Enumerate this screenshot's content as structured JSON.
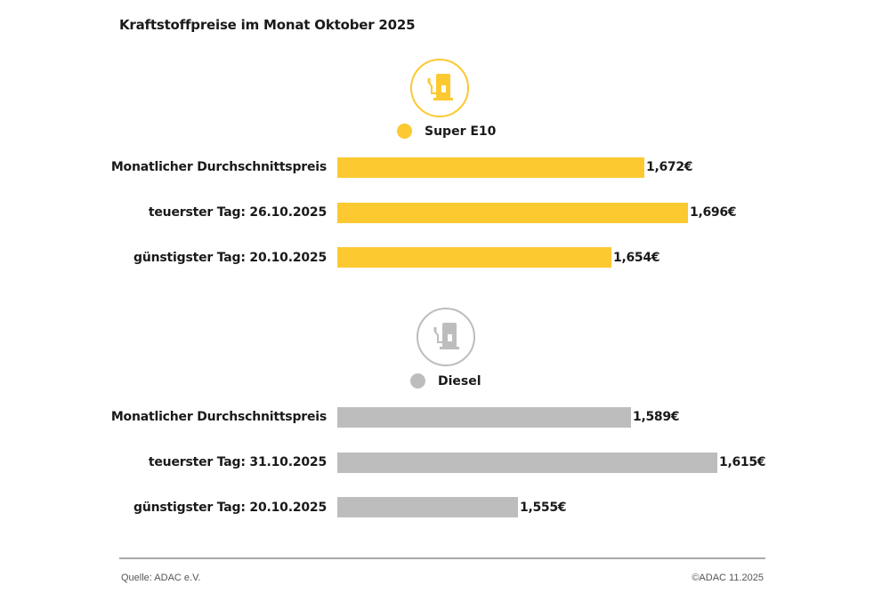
{
  "title": "Kraftstoffpreise im Monat Oktober 2025",
  "groups": [
    {
      "name": "Super E10",
      "color": "#FCC931",
      "icon": "fuel-pump-icon",
      "rows": [
        {
          "label": "Monatlicher Durchschnittspreis",
          "value": 1.672,
          "value_label": "1,672€"
        },
        {
          "label": "teuerster Tag: 26.10.2025",
          "value": 1.696,
          "value_label": "1,696€"
        },
        {
          "label": "günstigster Tag: 20.10.2025",
          "value": 1.654,
          "value_label": "1,654€"
        }
      ]
    },
    {
      "name": "Diesel",
      "color": "#BDBDBD",
      "icon": "fuel-pump-icon",
      "rows": [
        {
          "label": "Monatlicher Durchschnittspreis",
          "value": 1.589,
          "value_label": "1,589€"
        },
        {
          "label": "teuerster Tag: 31.10.2025",
          "value": 1.615,
          "value_label": "1,615€"
        },
        {
          "label": "günstigster Tag: 20.10.2025",
          "value": 1.555,
          "value_label": "1,555€"
        }
      ]
    }
  ],
  "footer": {
    "source": "Quelle: ADAC e.V.",
    "copyright": "©ADAC 11.2025"
  },
  "chart_data": {
    "type": "bar",
    "orientation": "horizontal",
    "title": "Kraftstoffpreise im Monat Oktober 2025",
    "categories": [
      "Monatlicher Durchschnittspreis",
      "teuerster Tag",
      "günstigster Tag"
    ],
    "series": [
      {
        "name": "Super E10",
        "color": "#FCC931",
        "dates": [
          "",
          "26.10.2025",
          "20.10.2025"
        ],
        "values": [
          1.672,
          1.696,
          1.654
        ]
      },
      {
        "name": "Diesel",
        "color": "#BDBDBD",
        "dates": [
          "",
          "31.10.2025",
          "20.10.2025"
        ],
        "values": [
          1.589,
          1.615,
          1.555
        ]
      }
    ],
    "unit": "€ per liter",
    "xlabel": "",
    "ylabel": "",
    "grid": false,
    "legend_position": "above each group"
  }
}
